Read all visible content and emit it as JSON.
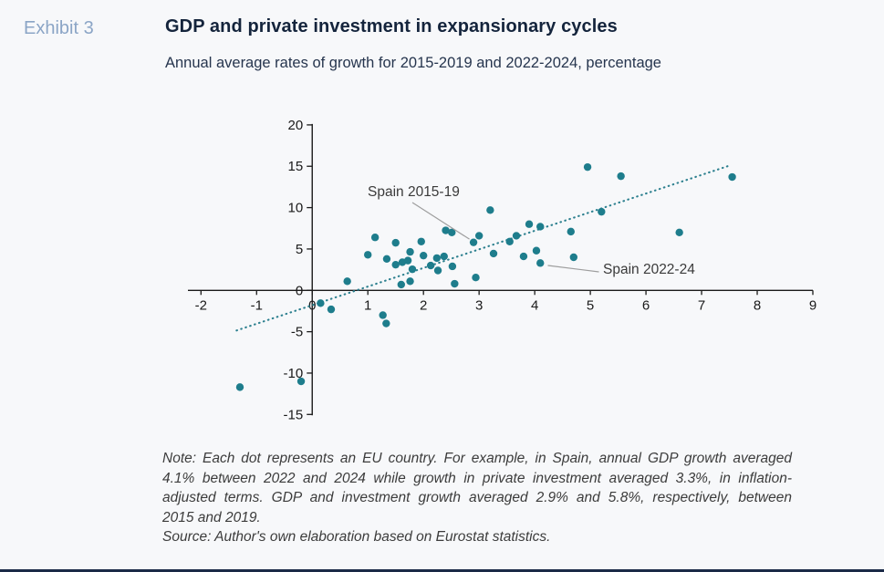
{
  "header": {
    "exhibit_label": "Exhibit 3",
    "title": "GDP and private investment in expansionary cycles",
    "subtitle": "Annual average rates of growth for 2015-2019 and 2022-2024, percentage"
  },
  "note": {
    "line1": "Note: Each dot represents an EU country. For example, in Spain, annual GDP growth averaged",
    "line2": "4.1% between 2022 and 2024 while growth in private investment averaged 3.3%, in inflation-",
    "line3": "adjusted terms. GDP and investment growth averaged 2.9% and 5.8%, respectively, between",
    "line4": "2015 and 2019.",
    "source": "Source: Author's own elaboration based on Eurostat statistics."
  },
  "chart_data": {
    "type": "scatter",
    "title": "GDP and private investment in expansionary cycles",
    "xlabel": "",
    "ylabel": "",
    "xlim": [
      -2,
      9
    ],
    "ylim": [
      -15,
      20
    ],
    "x_ticks": [
      -2,
      -1,
      0,
      1,
      2,
      3,
      4,
      5,
      6,
      7,
      8,
      9
    ],
    "y_ticks": [
      -15,
      -10,
      -5,
      0,
      5,
      10,
      15,
      20
    ],
    "grid": false,
    "legend": false,
    "points": [
      [
        -1.3,
        -11.7
      ],
      [
        -0.2,
        -11.0
      ],
      [
        0.15,
        -1.55
      ],
      [
        0.34,
        -2.3
      ],
      [
        0.63,
        1.1
      ],
      [
        1.0,
        4.3
      ],
      [
        1.13,
        6.4
      ],
      [
        1.27,
        -3.0
      ],
      [
        1.33,
        -4.0
      ],
      [
        1.34,
        3.8
      ],
      [
        1.5,
        5.75
      ],
      [
        1.5,
        3.1
      ],
      [
        1.6,
        0.7
      ],
      [
        1.62,
        3.4
      ],
      [
        1.72,
        3.6
      ],
      [
        1.76,
        4.65
      ],
      [
        1.76,
        1.1
      ],
      [
        1.8,
        2.55
      ],
      [
        1.96,
        5.9
      ],
      [
        2.0,
        4.2
      ],
      [
        2.13,
        3.0
      ],
      [
        2.24,
        3.9
      ],
      [
        2.26,
        2.4
      ],
      [
        2.37,
        4.1
      ],
      [
        2.4,
        7.25
      ],
      [
        2.51,
        7.0
      ],
      [
        2.52,
        2.9
      ],
      [
        2.56,
        0.8
      ],
      [
        2.9,
        5.8
      ],
      [
        2.94,
        1.55
      ],
      [
        3.0,
        6.6
      ],
      [
        3.2,
        9.7
      ],
      [
        3.26,
        4.45
      ],
      [
        3.55,
        5.9
      ],
      [
        3.67,
        6.6
      ],
      [
        3.8,
        4.1
      ],
      [
        3.9,
        8.0
      ],
      [
        4.03,
        4.8
      ],
      [
        4.1,
        7.7
      ],
      [
        4.1,
        3.3
      ],
      [
        4.65,
        7.1
      ],
      [
        4.7,
        4.0
      ],
      [
        4.95,
        14.9
      ],
      [
        5.2,
        9.5
      ],
      [
        5.55,
        13.8
      ],
      [
        6.6,
        7.0
      ],
      [
        7.55,
        13.7
      ]
    ],
    "trendline": {
      "style": "dotted",
      "x1": -1.36,
      "y1": -4.85,
      "x2": 7.51,
      "y2": 15.1
    },
    "annotations": [
      {
        "text": "Spain 2015-19",
        "point": [
          2.9,
          5.8
        ]
      },
      {
        "text": "Spain 2022-24",
        "point": [
          4.1,
          3.3
        ]
      }
    ],
    "colors": {
      "point": "#1e7d8c",
      "trend": "#2d808f",
      "axis": "#1a1a1a",
      "annotation_text": "#3a3a3a",
      "leader": "#9e9e9e"
    }
  }
}
